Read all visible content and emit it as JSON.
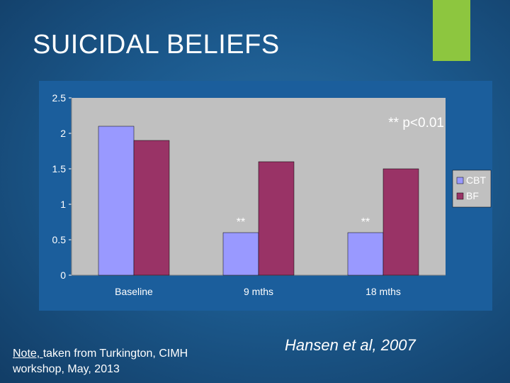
{
  "slide": {
    "title": "SUICIDAL BELIEFS",
    "note_label": "Note, ",
    "note_text_1": "taken from Turkington, CIMH",
    "note_text_2": "workshop, May, 2013",
    "citation": "Hansen et al, 2007"
  },
  "colors": {
    "accent": "#8dc63f",
    "cbt": "#9999ff",
    "bf": "#993366",
    "plot_bg": "#c0c0c0",
    "panel_bg": "#1b5e9c"
  },
  "chart_data": {
    "type": "bar",
    "categories": [
      "Baseline",
      "9 mths",
      "18 mths"
    ],
    "series": [
      {
        "name": "CBT",
        "values": [
          2.1,
          0.6,
          0.6
        ]
      },
      {
        "name": "BF",
        "values": [
          1.9,
          1.6,
          1.5
        ]
      }
    ],
    "ylim": [
      0,
      2.5
    ],
    "yticks": [
      "0",
      "0.5",
      "1",
      "1.5",
      "2",
      "2.5"
    ],
    "grid": false,
    "legend": "right",
    "annotations": {
      "significance": "** p<0.01",
      "markers": [
        "",
        "**",
        "**"
      ]
    }
  }
}
